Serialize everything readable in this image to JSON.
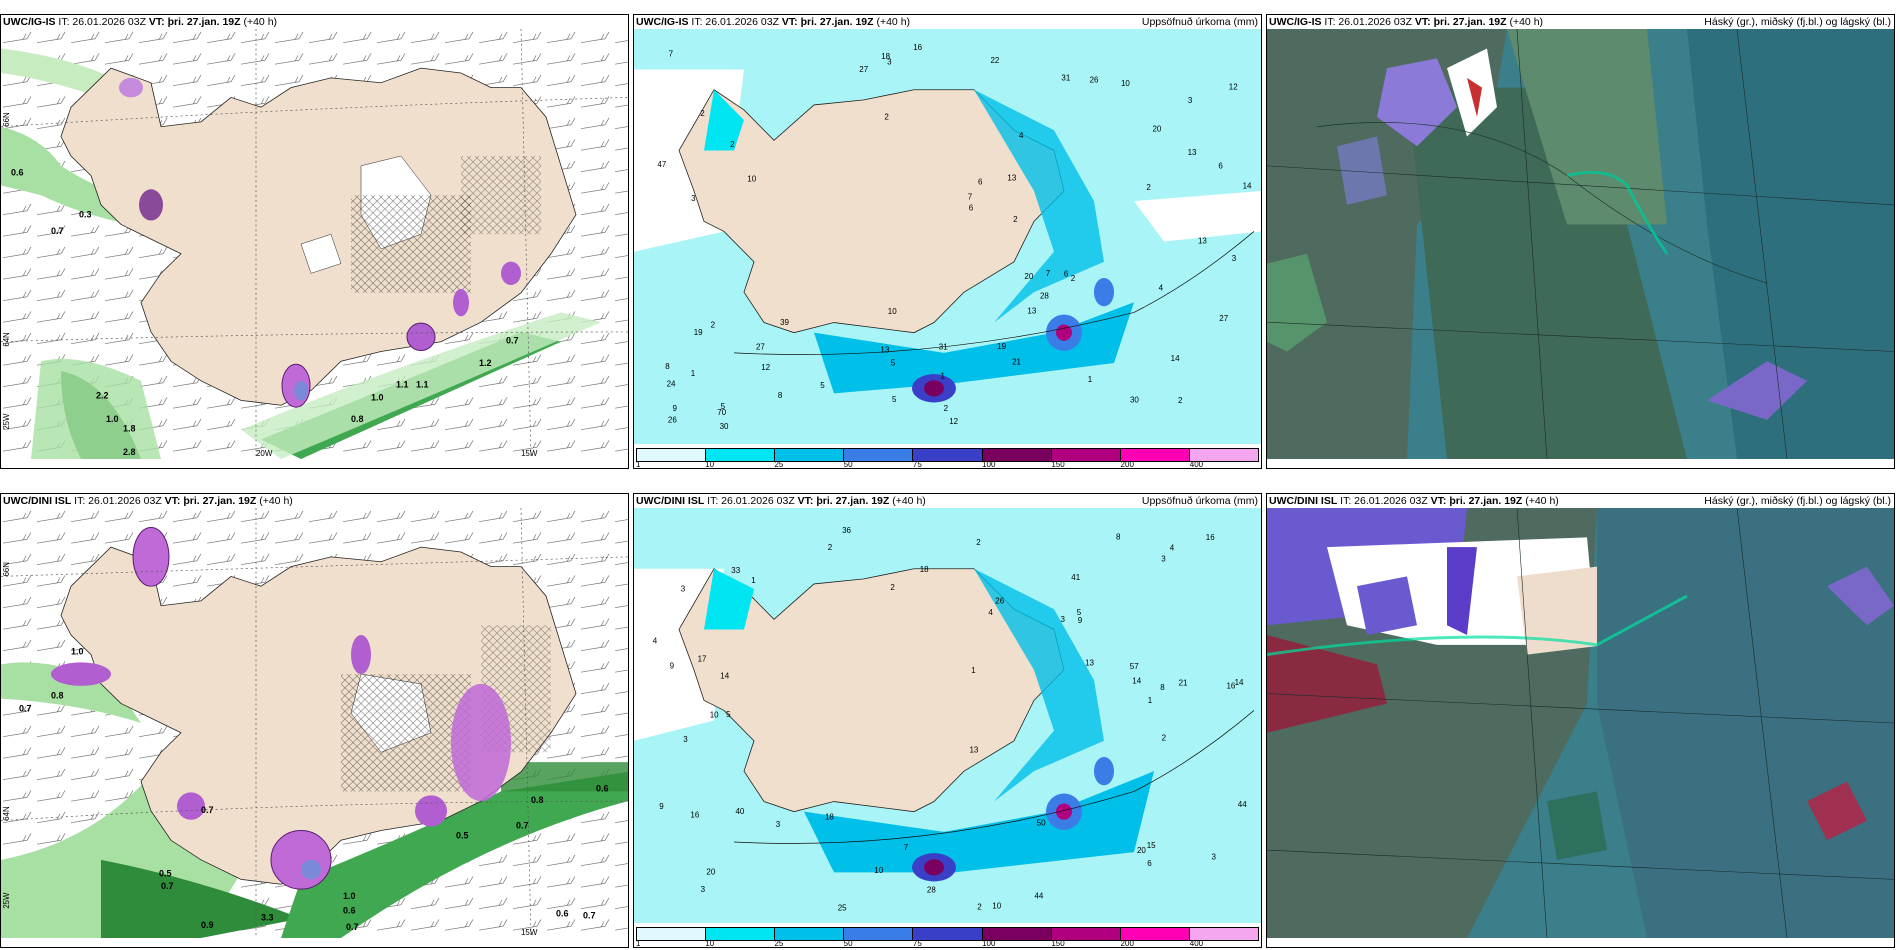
{
  "panels": [
    {
      "id": "a1",
      "model": "UWC/IG-IS",
      "issue": "IT: 26.01.2026 03Z",
      "valid_label": "VT:",
      "valid": "þri. 27.jan. 19Z",
      "lead": "(+40 h)",
      "right_title": ""
    },
    {
      "id": "a2",
      "model": "UWC/IG-IS",
      "issue": "IT: 26.01.2026 03Z",
      "valid_label": "VT:",
      "valid": "þri. 27.jan. 19Z",
      "lead": "(+40 h)",
      "right_title": "Uppsöfnuð úrkoma (mm)"
    },
    {
      "id": "a3",
      "model": "UWC/IG-IS",
      "issue": "IT: 26.01.2026 03Z",
      "valid_label": "VT:",
      "valid": "þri. 27.jan. 19Z",
      "lead": "(+40 h)",
      "right_title": "Háský (gr.), miðský (fj.bl.) og lágský (bl.)"
    },
    {
      "id": "b1",
      "model": "UWC/DINI ISL",
      "issue": "IT: 26.01.2026 03Z",
      "valid_label": "VT:",
      "valid": "þri. 27.jan. 19Z",
      "lead": "(+40 h)",
      "right_title": ""
    },
    {
      "id": "b2",
      "model": "UWC/DINI ISL",
      "issue": "IT: 26.01.2026 03Z",
      "valid_label": "VT:",
      "valid": "þri. 27.jan. 19Z",
      "lead": "(+40 h)",
      "right_title": "Uppsöfnuð úrkoma (mm)"
    },
    {
      "id": "b3",
      "model": "UWC/DINI ISL",
      "issue": "IT: 26.01.2026 03Z",
      "valid_label": "VT:",
      "valid": "þri. 27.jan. 19Z",
      "lead": "(+40 h)",
      "right_title": "Háský (gr.), miðský (fj.bl.) og lágský (bl.)"
    }
  ],
  "axis_labels": {
    "lon_20w": "20W",
    "lon_15w": "15W",
    "lat_66n": "66N",
    "lat_64n": "64N",
    "lat_25w": "25W"
  },
  "precip_legend": {
    "ticks": [
      "1",
      "10",
      "25",
      "50",
      "75",
      "100",
      "150",
      "200",
      "400"
    ],
    "colors": [
      "#dff9ff",
      "#00e5f2",
      "#00bfe8",
      "#3b7de6",
      "#3a3fc8",
      "#7a0060",
      "#b0007f",
      "#ff00b4",
      "#f4a6ef"
    ]
  },
  "precip_values_top": [
    "2",
    "3",
    "3",
    "4",
    "5",
    "2",
    "2",
    "24",
    "12",
    "6",
    "2",
    "2",
    "3",
    "14",
    "20",
    "13",
    "13",
    "31",
    "39",
    "30",
    "14",
    "6",
    "12",
    "10",
    "13",
    "8",
    "6",
    "7",
    "9",
    "5",
    "6",
    "19",
    "20",
    "12",
    "28",
    "21",
    "27",
    "30",
    "26",
    "31",
    "10",
    "16",
    "47",
    "26",
    "70",
    "22",
    "27",
    "27",
    "10",
    "5",
    "7",
    "8",
    "7",
    "2",
    "3",
    "1",
    "1",
    "2",
    "4",
    "5",
    "2",
    "1",
    "2",
    "19",
    "18",
    "13",
    "13"
  ],
  "precip_values_bottom": [
    "36",
    "41",
    "16",
    "13",
    "5",
    "3",
    "3",
    "3",
    "4",
    "3",
    "2",
    "2",
    "10",
    "7",
    "8",
    "13",
    "14",
    "10",
    "14",
    "21",
    "9",
    "17",
    "14",
    "15",
    "16",
    "20",
    "26",
    "40",
    "50",
    "44",
    "57",
    "10",
    "16",
    "18",
    "20",
    "25",
    "44",
    "33",
    "28",
    "9",
    "6",
    "5",
    "4",
    "2",
    "1",
    "1",
    "3",
    "2",
    "3",
    "4",
    "3",
    "2",
    "1",
    "18",
    "9",
    "8"
  ],
  "qpf_values_top": [
    "0.6",
    "0.7",
    "0.3",
    "2.2",
    "1.0",
    "1.8",
    "2.8",
    "0.7",
    "1.2",
    "1.0",
    "1.1",
    "1.1",
    "0.8"
  ],
  "qpf_values_bottom": [
    "1.0",
    "0.8",
    "0.7",
    "0.7",
    "0.5",
    "0.7",
    "0.9",
    "3.3",
    "1.0",
    "0.6",
    "0.7",
    "0.5",
    "0.7",
    "0.8",
    "0.6",
    "0.6",
    "0.7"
  ]
}
